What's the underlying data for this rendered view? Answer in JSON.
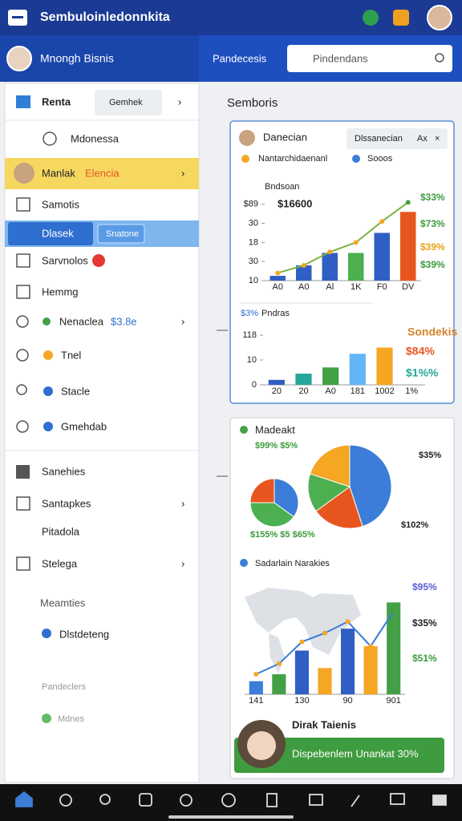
{
  "header": {
    "title": "Sembuloinledonnkita"
  },
  "subheader": {
    "user": "Mnongh Bisnis",
    "tab": "Pandecesis",
    "search": "Pindendans"
  },
  "sidebar": {
    "header": "Renta",
    "tab": "Gemhek",
    "items": [
      {
        "label": "Mdonessa"
      },
      {
        "label": "Manlak",
        "accent": "Elencia"
      },
      {
        "label": "Samotis"
      },
      {
        "label": "Dlasek",
        "button": "Snatone"
      },
      {
        "label": "Sarvnolos"
      },
      {
        "label": "Hemmg"
      },
      {
        "label": "Nenaclea",
        "value": "$3.8e"
      },
      {
        "label": "Tnel"
      },
      {
        "label": "Stacle"
      },
      {
        "label": "Gmehdab"
      },
      {
        "label": "Sanehies"
      },
      {
        "label": "Santapkes"
      },
      {
        "label": "Pitadola"
      },
      {
        "label": "Stelega"
      },
      {
        "label": "Meamties"
      },
      {
        "label": "Dlstdeteng"
      },
      {
        "label": "Pandeclers"
      },
      {
        "label": "Mdnes"
      }
    ]
  },
  "main": {
    "heading": "Semboris"
  },
  "card1": {
    "title": "Danecian",
    "tab": "Dlssanecian",
    "tab2": "Ax",
    "legend": [
      "Nantarchidaenanl",
      "Sooos"
    ],
    "charts": [
      {
        "type": "bar_line",
        "title": "Bndsoan",
        "value_title": "$16600",
        "categories": [
          "A0",
          "A0",
          "Al",
          "1K",
          "F0",
          "DV"
        ],
        "values": [
          2.5,
          8,
          14.5,
          14.5,
          25,
          36
        ],
        "colors": [
          "#2f5fc4",
          "#2f5fc4",
          "#2f5fc4",
          "#4caf50",
          "#2f5fc4",
          "#e8561f"
        ],
        "line": {
          "color": "#7cb342",
          "values": [
            4,
            8,
            15,
            20,
            31,
            41
          ]
        },
        "ylim": [
          0,
          42
        ],
        "yticks": [
          {
            "value": 40,
            "label": "$89"
          },
          30,
          {
            "value": 20,
            "label": "18"
          },
          {
            "value": 10,
            "label": "30"
          },
          {
            "value": 0,
            "label": "10"
          }
        ],
        "annotations": [
          {
            "text": "$33%",
            "color": "#3c9a3c"
          },
          {
            "text": "$73%",
            "color": "#3c9a3c"
          },
          {
            "text": "$39%",
            "color": "#e8a317"
          },
          {
            "text": "$39%",
            "color": "#3c9a3c"
          }
        ]
      },
      {
        "type": "bar",
        "prefix": "$3%",
        "title": "Pndras",
        "categories": [
          "20",
          "20",
          "A0",
          "181",
          "1002",
          "1%"
        ],
        "values": [
          0.8,
          1.8,
          2.8,
          5,
          6,
          null
        ],
        "colors": [
          "#2f5fc4",
          "#26a69a",
          "#43a047",
          "#64b5f6",
          "#f5a623",
          "#999999"
        ],
        "ylim": [
          0,
          8
        ],
        "yticks": [
          {
            "value": 8,
            "label": "118"
          },
          {
            "value": 4,
            "label": "10"
          },
          0
        ],
        "annotations": [
          {
            "text": "Sondekis",
            "color": "#d9822b"
          },
          {
            "text": "$84%",
            "color": "#e8561f"
          },
          {
            "text": "$1%%",
            "color": "#26a69a"
          }
        ]
      }
    ]
  },
  "card2": {
    "title": "Madeakt",
    "charts": [
      {
        "type": "pie",
        "values": [
          35,
          40,
          25
        ],
        "colors": [
          "#3b7dd8",
          "#4caf50",
          "#e8561f"
        ]
      },
      {
        "type": "pie",
        "values": [
          45,
          20,
          15,
          20
        ],
        "colors": [
          "#3b7dd8",
          "#e8561f",
          "#4caf50",
          "#f5a623"
        ],
        "annotations": [
          {
            "text": "$99% $5%",
            "color": "#3c9a3c"
          },
          {
            "text": "$35%",
            "color": "#222222"
          },
          {
            "text": "$102%",
            "color": "#222222"
          },
          {
            "text": "$155% $5 $65%",
            "color": "#3c9a3c"
          }
        ]
      },
      {
        "type": "bar_line",
        "title": "Sadarlain Narakies",
        "categories": [
          "141",
          null,
          "130",
          null,
          "90",
          null,
          "901"
        ],
        "values": [
          1.5,
          2.3,
          5,
          3,
          7.5,
          5.5,
          10.5
        ],
        "colors": [
          "#3b7dd8",
          "#43a047",
          "#2f5fc4",
          "#f5a623",
          "#2f5fc4",
          "#f5a623",
          "#43a047"
        ],
        "line": {
          "color": "#3b7dd8",
          "values": [
            2.3,
            3.5,
            6,
            7,
            8.3,
            5.5,
            9.5
          ]
        },
        "ylim": [
          0,
          12
        ],
        "annotations": [
          {
            "text": "$95%",
            "color": "#5b5bd6"
          },
          {
            "text": "$35%",
            "color": "#222222"
          },
          {
            "text": "$51%",
            "color": "#3c9a3c"
          }
        ]
      }
    ],
    "banner_title": "Dirak Taienis",
    "banner": "Dispebenlem Unankat 30%"
  }
}
